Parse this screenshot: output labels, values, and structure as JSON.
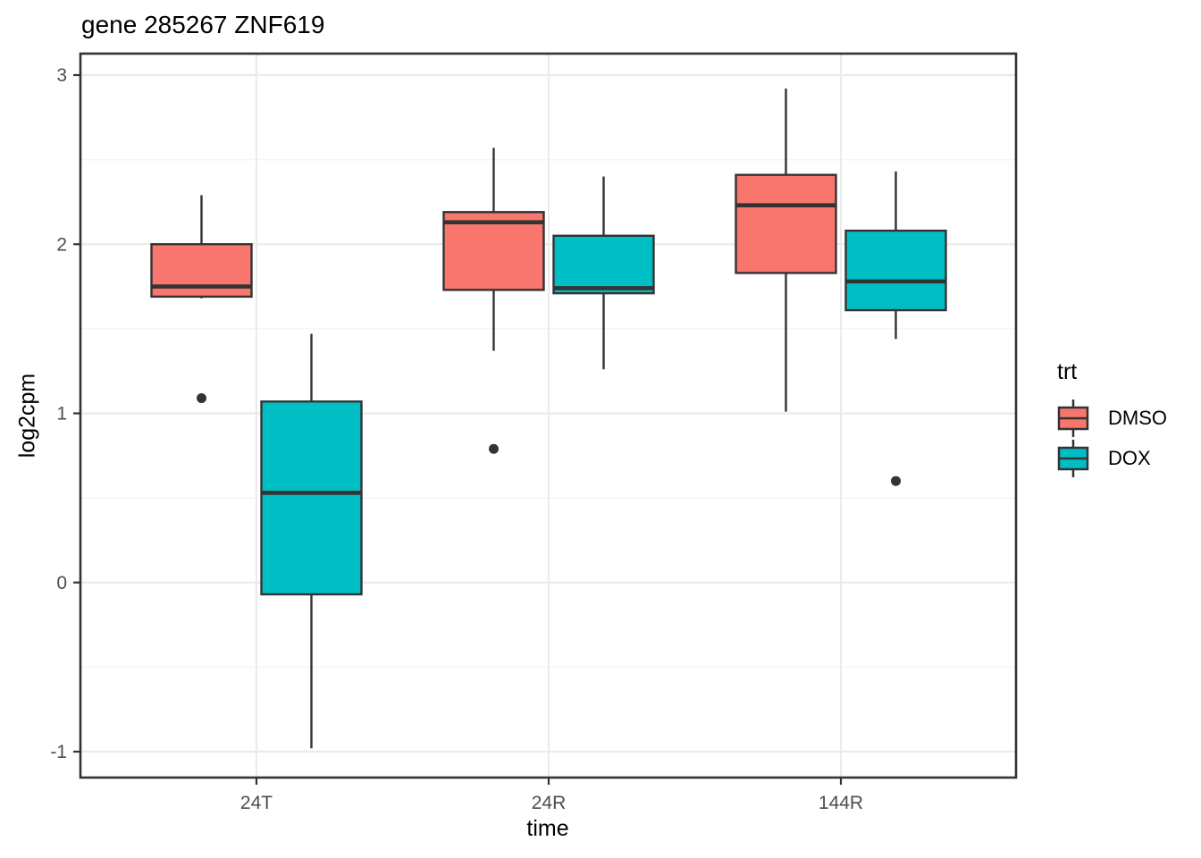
{
  "chart_data": {
    "type": "boxplot",
    "title": "gene 285267 ZNF619",
    "xlabel": "time",
    "ylabel": "log2cpm",
    "categories": [
      "24T",
      "24R",
      "144R"
    ],
    "y_ticks": [
      3,
      2,
      1,
      0,
      -1
    ],
    "y_tick_labels": [
      "3",
      "2",
      "1",
      "0",
      "-1"
    ],
    "y_minor_ticks": [
      2.5,
      1.5,
      0.5,
      -0.5
    ],
    "ylim": [
      -1.15,
      3.13
    ],
    "grid": true,
    "legend": {
      "title": "trt",
      "position": "right",
      "entries": [
        {
          "label": "DMSO",
          "color": "#F8766D"
        },
        {
          "label": "DOX",
          "color": "#00BFC4"
        }
      ]
    },
    "series": [
      {
        "name": "DMSO",
        "color": "#F8766D",
        "boxes": [
          {
            "category": "24T",
            "whisker_low": 1.68,
            "q1": 1.69,
            "median": 1.75,
            "q3": 2.0,
            "whisker_high": 2.29,
            "outliers": [
              1.09
            ]
          },
          {
            "category": "24R",
            "whisker_low": 1.37,
            "q1": 1.73,
            "median": 2.13,
            "q3": 2.19,
            "whisker_high": 2.57,
            "outliers": [
              0.79
            ]
          },
          {
            "category": "144R",
            "whisker_low": 1.01,
            "q1": 1.83,
            "median": 2.23,
            "q3": 2.41,
            "whisker_high": 2.92,
            "outliers": []
          }
        ]
      },
      {
        "name": "DOX",
        "color": "#00BFC4",
        "boxes": [
          {
            "category": "24T",
            "whisker_low": -0.98,
            "q1": -0.07,
            "median": 0.53,
            "q3": 1.07,
            "whisker_high": 1.47,
            "outliers": []
          },
          {
            "category": "24R",
            "whisker_low": 1.26,
            "q1": 1.71,
            "median": 1.74,
            "q3": 2.05,
            "whisker_high": 2.4,
            "outliers": []
          },
          {
            "category": "144R",
            "whisker_low": 1.44,
            "q1": 1.61,
            "median": 1.78,
            "q3": 2.08,
            "whisker_high": 2.43,
            "outliers": [
              0.6
            ]
          }
        ]
      }
    ],
    "style": {
      "stroke_color": "#333333",
      "grid_major_color": "#EBEBEB",
      "grid_minor_color": "#F5F5F5",
      "tick_label_color": "#4D4D4D",
      "panel_background": "#FFFFFF"
    }
  }
}
